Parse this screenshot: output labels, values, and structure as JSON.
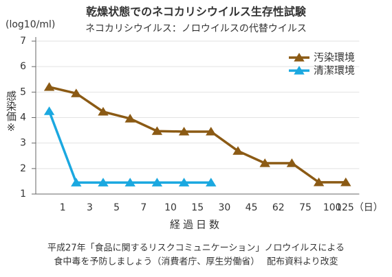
{
  "chart_data": {
    "type": "line",
    "title": "乾燥状態でのネコカリシウイルス生存性試験",
    "subtitle": "ネコカリシウイルス：ノロウイルスの代替ウイルス",
    "y_unit": "(log10/ml)",
    "y_label": "感染価※",
    "x_label": "経過日数",
    "xticks": [
      "1",
      "3",
      "5",
      "7",
      "10",
      "15",
      "30",
      "45",
      "62",
      "75",
      "100",
      "125（日）"
    ],
    "series": [
      {
        "name": "汚染環境",
        "color": "#8b5a14",
        "values": [
          5.2,
          4.95,
          4.23,
          3.96,
          3.47,
          3.45,
          3.45,
          2.69,
          2.21,
          2.21,
          1.46,
          1.46
        ]
      },
      {
        "name": "清潔環境",
        "color": "#1ba8e0",
        "values": [
          4.25,
          1.45,
          1.45,
          1.45,
          1.45,
          1.45,
          1.45,
          null,
          null,
          null,
          null,
          null
        ]
      }
    ],
    "ylim": [
      1,
      7
    ],
    "yticks": [
      1,
      2,
      3,
      4,
      5,
      6,
      7
    ],
    "grid": true,
    "legend": "top-right",
    "source": [
      "平成27年「食品に関するリスクコミュニケーション」ノロウイルスによる",
      "食中毒を予防しましょう（消費者庁、厚生労働省）　 配布資料より改変"
    ]
  }
}
